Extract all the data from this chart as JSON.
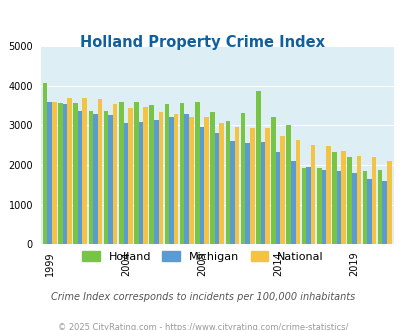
{
  "title": "Holland Property Crime Index",
  "subtitle": "Crime Index corresponds to incidents per 100,000 inhabitants",
  "footer": "© 2025 CityRating.com - https://www.cityrating.com/crime-statistics/",
  "years": [
    1999,
    2000,
    2001,
    2002,
    2003,
    2004,
    2005,
    2006,
    2007,
    2008,
    2009,
    2010,
    2011,
    2012,
    2013,
    2014,
    2015,
    2016,
    2017,
    2018,
    2019,
    2020,
    2021
  ],
  "holland": [
    4060,
    3560,
    3560,
    3370,
    3360,
    3600,
    3580,
    3510,
    3550,
    3570,
    3590,
    3340,
    3100,
    3320,
    3870,
    3220,
    3010,
    1930,
    1930,
    2340,
    2200,
    1840,
    1880
  ],
  "michigan": [
    3580,
    3540,
    3370,
    3300,
    3270,
    3060,
    3090,
    3130,
    3220,
    3290,
    2950,
    2820,
    2600,
    2560,
    2570,
    2330,
    2090,
    1940,
    1870,
    1840,
    1810,
    1650,
    1590
  ],
  "national": [
    3580,
    3690,
    3680,
    3660,
    3530,
    3440,
    3470,
    3350,
    3280,
    3210,
    3220,
    3050,
    2950,
    2940,
    2930,
    2730,
    2620,
    2510,
    2490,
    2360,
    2230,
    2190,
    2110
  ],
  "holland_color": "#78c444",
  "michigan_color": "#5b9bd5",
  "national_color": "#f5c343",
  "bg_color": "#ddeef5",
  "ylim": [
    0,
    5000
  ],
  "yticks": [
    0,
    1000,
    2000,
    3000,
    4000,
    5000
  ],
  "xtick_years": [
    1999,
    2004,
    2009,
    2014,
    2019
  ],
  "title_color": "#1060a0",
  "subtitle_color": "#555555",
  "footer_color": "#999999"
}
